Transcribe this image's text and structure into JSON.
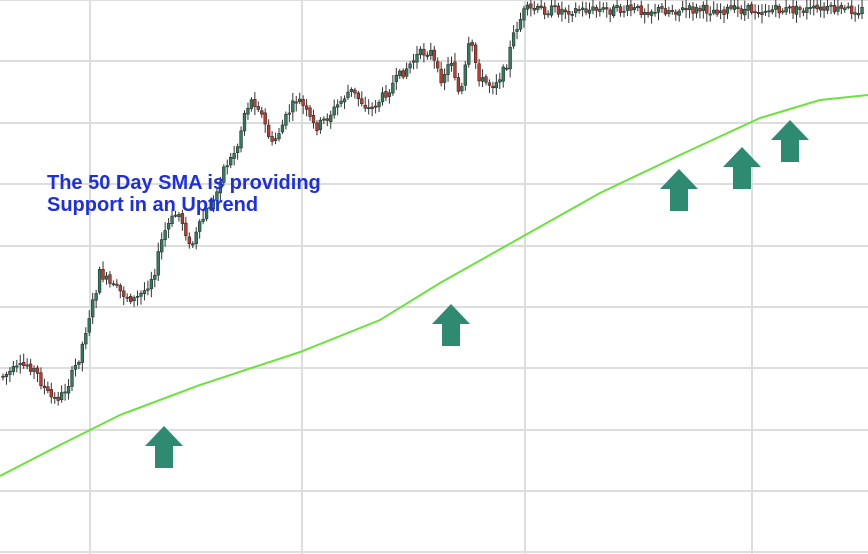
{
  "chart_data": {
    "type": "candlestick",
    "title": "",
    "xlabel": "",
    "ylabel": "",
    "grid": true,
    "annotation": [
      "The 50 Day SMA is providing",
      "Support in an Uptrend"
    ],
    "series": [
      {
        "type": "candlestick"
      },
      {
        "type": "line"
      }
    ],
    "support_arrows": [
      {
        "near_candle": 44
      },
      {
        "near_candle": 135
      },
      {
        "near_candle": 204
      },
      {
        "near_candle": 220
      },
      {
        "near_candle": 235
      }
    ],
    "colors": {
      "up": "#2e7d5b",
      "down": "#c0392b",
      "wick": "#333333",
      "sma": "#6be33c",
      "arrow": "#2f8a72",
      "grid": "#dddddd",
      "annotation": "#1d2fe0"
    }
  }
}
